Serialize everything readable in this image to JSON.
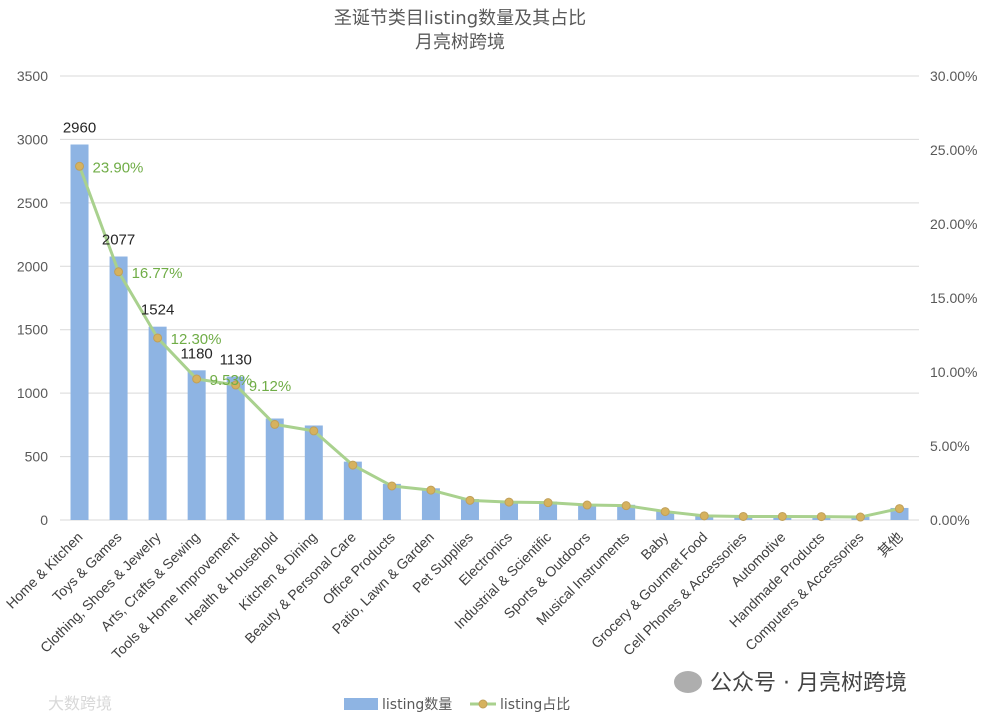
{
  "chart_data": {
    "type": "bar",
    "title": "圣诞节类目listing数量及其占比",
    "subtitle": "月亮树跨境",
    "categories": [
      "Home & Kitchen",
      "Toys & Games",
      "Clothing, Shoes & Jewelry",
      "Arts, Crafts & Sewing",
      "Tools & Home Improvement",
      "Health & Household",
      "Kitchen & Dining",
      "Beauty & Personal Care",
      "Office Products",
      "Patio, Lawn & Garden",
      "Pet Supplies",
      "Electronics",
      "Industrial & Scientific",
      "Sports & Outdoors",
      "Musical Instruments",
      "Baby",
      "Grocery & Gourmet Food",
      "Cell Phones & Accessories",
      "Automotive",
      "Handmade Products",
      "Computers & Accessories",
      "其他"
    ],
    "series": [
      {
        "name": "listing数量",
        "type": "bar",
        "axis": "left",
        "color": "#8eb4e3",
        "values": [
          2960,
          2077,
          1524,
          1180,
          1130,
          800,
          745,
          460,
          285,
          250,
          165,
          150,
          145,
          125,
          120,
          70,
          35,
          30,
          30,
          28,
          25,
          95
        ],
        "labels": [
          "2960",
          "2077",
          "1524",
          "1180",
          "1130",
          "",
          "",
          "",
          "",
          "",
          "",
          "",
          "",
          "",
          "",
          "",
          "",
          "",
          "",
          "",
          "",
          ""
        ]
      },
      {
        "name": "listing占比",
        "type": "line",
        "axis": "right",
        "color": "#a9d18e",
        "marker_color": "#d6b25e",
        "values": [
          23.9,
          16.77,
          12.3,
          9.53,
          9.12,
          6.46,
          6.02,
          3.71,
          2.3,
          2.02,
          1.33,
          1.21,
          1.17,
          1.01,
          0.97,
          0.57,
          0.28,
          0.24,
          0.24,
          0.23,
          0.2,
          0.77
        ],
        "labels": [
          "23.90%",
          "16.77%",
          "12.30%",
          "9.53%",
          "9.12%",
          "",
          "",
          "",
          "",
          "",
          "",
          "",
          "",
          "",
          "",
          "",
          "",
          "",
          "",
          "",
          "",
          ""
        ]
      }
    ],
    "y_left": {
      "min": 0,
      "max": 3500,
      "ticks": [
        "0",
        "500",
        "1000",
        "1500",
        "2000",
        "2500",
        "3000",
        "3500"
      ]
    },
    "y_right": {
      "min": 0,
      "max": 30,
      "ticks": [
        "0.00%",
        "5.00%",
        "10.00%",
        "15.00%",
        "20.00%",
        "25.00%",
        "30.00%"
      ]
    },
    "grid": true,
    "legend": "bottom"
  },
  "watermark": {
    "left_text": "大数跨境",
    "right_text": "公众号 · 月亮树跨境"
  }
}
